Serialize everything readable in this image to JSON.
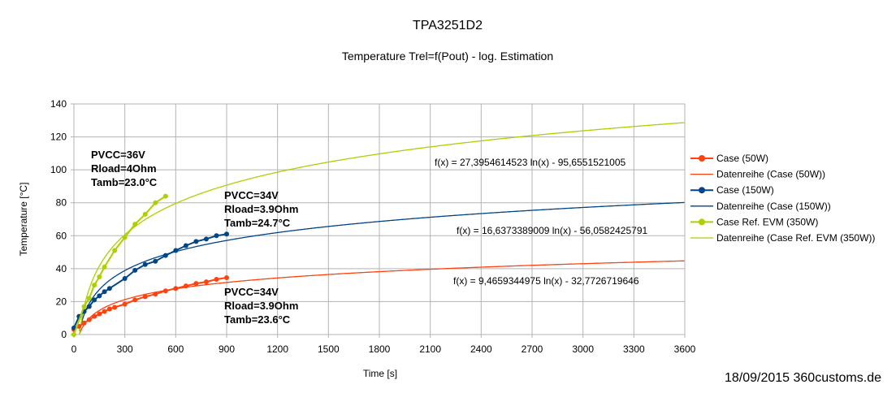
{
  "chart_data": {
    "type": "scatter",
    "title": "TPA3251D2",
    "subtitle": "Temperature Trel=f(Pout) - log. Estimation",
    "xlabel": "Time [s]",
    "ylabel": "Temperature [°C]",
    "xlim": [
      0,
      3600
    ],
    "ylim": [
      0,
      140
    ],
    "xticks": [
      0,
      300,
      600,
      900,
      1200,
      1500,
      1800,
      2100,
      2400,
      2700,
      3000,
      3300,
      3600
    ],
    "yticks": [
      0,
      20,
      40,
      60,
      80,
      100,
      120,
      140
    ],
    "grid": true,
    "legend_position": "right",
    "series": [
      {
        "name": "Case (50W)",
        "kind": "markers",
        "color": "#ff420e",
        "x": [
          0,
          30,
          60,
          90,
          120,
          150,
          180,
          210,
          240,
          300,
          360,
          420,
          480,
          540,
          600,
          660,
          720,
          780,
          840,
          900
        ],
        "y": [
          3,
          5,
          7,
          9,
          11,
          12.5,
          14,
          15.5,
          16.5,
          18.5,
          21,
          23,
          24.5,
          26.5,
          28,
          29.5,
          31,
          32,
          33.5,
          34.5
        ]
      },
      {
        "name": "Datenreihe (Case (50W))",
        "kind": "log-fit",
        "color": "#ff420e",
        "a": 9.4659344975,
        "b": -32.7726719646,
        "equation": "f(x) = 9,4659344975 ln(x) - 32,7726719646"
      },
      {
        "name": "Case (150W)",
        "kind": "markers",
        "color": "#004586",
        "x": [
          0,
          30,
          60,
          90,
          120,
          150,
          180,
          210,
          300,
          360,
          420,
          480,
          540,
          600,
          660,
          720,
          780,
          840,
          900
        ],
        "y": [
          4,
          11,
          14,
          17,
          21,
          23.5,
          26,
          28,
          34,
          39,
          42.5,
          44.5,
          48,
          51,
          54,
          56.5,
          58,
          60,
          61
        ]
      },
      {
        "name": "Datenreihe (Case (150W))",
        "kind": "log-fit",
        "color": "#004586",
        "a": 16.6373389009,
        "b": -56.0582425791,
        "equation": "f(x) = 16,6373389009 ln(x) - 56,0582425791"
      },
      {
        "name": "Case Ref. EVM (350W)",
        "kind": "markers",
        "color": "#aecf00",
        "x": [
          0,
          60,
          90,
          120,
          150,
          180,
          240,
          300,
          360,
          420,
          480,
          540
        ],
        "y": [
          0,
          17,
          22,
          30,
          35,
          41,
          51,
          59,
          67,
          73,
          80,
          84
        ]
      },
      {
        "name": "Datenreihe (Case Ref. EVM (350W))",
        "kind": "log-fit",
        "color": "#aecf00",
        "a": 27.3954614523,
        "b": -95.6551521005,
        "equation": "f(x) = 27,3954614523 ln(x) - 95,6551521005"
      }
    ],
    "annotations": {
      "evm": [
        "PVCC=36V",
        "Rload=4Ohm",
        "Tamb=23.0°C"
      ],
      "w150": [
        "PVCC=34V",
        "Rload=3.9Ohm",
        "Tamb=24.7°C"
      ],
      "w50": [
        "PVCC=34V",
        "Rload=3.9Ohm",
        "Tamb=23.6°C"
      ]
    },
    "footer": "18/09/2015 360customs.de"
  }
}
